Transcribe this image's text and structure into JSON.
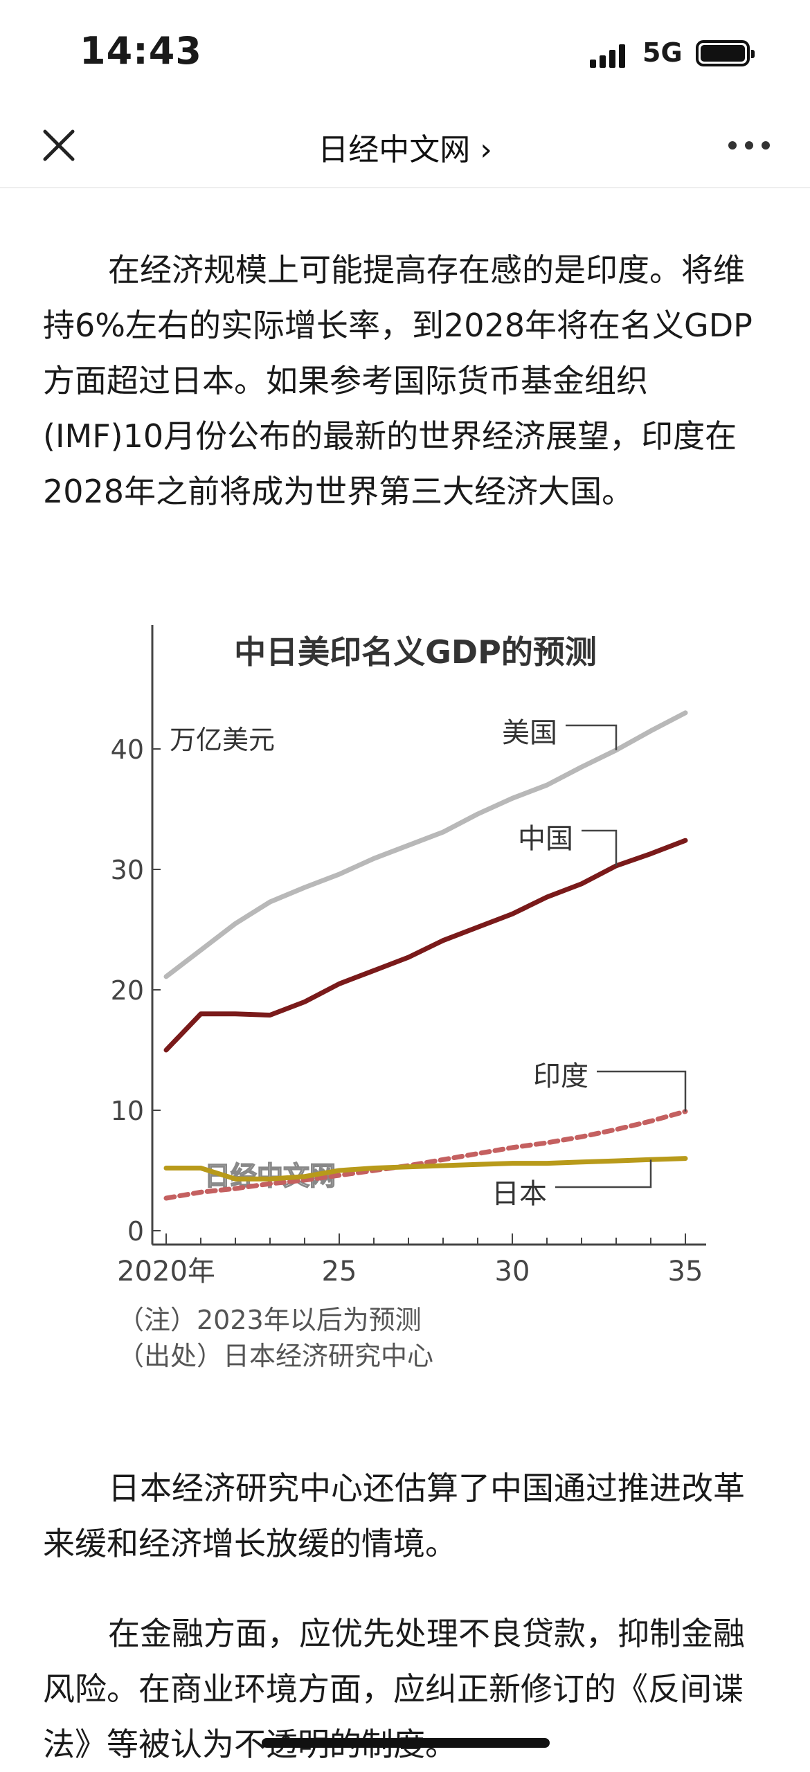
{
  "status_bar": {
    "time": "14:43",
    "network": "5G"
  },
  "nav": {
    "title": "日经中文网 ›",
    "close_icon": "close-icon",
    "more_icon": "more-icon"
  },
  "article": {
    "p1": "在经济规模上可能提高存在感的是印度。将维持6%左右的实际增长率，到2028年将在名义GDP方面超过日本。如果参考国际货币基金组织(IMF)10月份公布的最新的世界经济展望，印度在2028年之前将成为世界第三大经济大国。",
    "p2": "日本经济研究中心还估算了中国通过推进改革来缓和经济增长放缓的情境。",
    "p3": "在金融方面，应优先处理不良贷款，抑制金融风险。在商业环境方面，应纠正新修订的《反间谍法》等被认为不透明的制度。"
  },
  "chart_data": {
    "type": "line",
    "title": "中日美印名义GDP的预测",
    "ylabel": "万亿美元",
    "xlabel": "",
    "x": [
      2020,
      2021,
      2022,
      2023,
      2024,
      2025,
      2026,
      2027,
      2028,
      2029,
      2030,
      2031,
      2032,
      2033,
      2034,
      2035
    ],
    "xticks": [
      2020,
      2025,
      2030,
      2035
    ],
    "xtick_labels": [
      "2020年",
      "25",
      "30",
      "35"
    ],
    "yticks": [
      0,
      10,
      20,
      30,
      40
    ],
    "ylim": [
      0,
      45
    ],
    "forecast_from": 2023,
    "series": [
      {
        "name": "美国",
        "color": "#b8b8b8",
        "dashed": false,
        "values": [
          21.1,
          23.3,
          25.5,
          27.3,
          28.5,
          29.6,
          30.9,
          32.0,
          33.1,
          34.6,
          35.9,
          37.0,
          38.5,
          39.9,
          41.5,
          43.0
        ]
      },
      {
        "name": "中国",
        "color": "#7a1a1a",
        "dashed": false,
        "values": [
          15.0,
          18.0,
          18.0,
          17.9,
          19.0,
          20.5,
          21.6,
          22.7,
          24.1,
          25.2,
          26.3,
          27.7,
          28.8,
          30.3,
          31.3,
          32.4
        ]
      },
      {
        "name": "印度",
        "color": "#c46060",
        "dashed": true,
        "values": [
          2.7,
          3.2,
          3.5,
          3.9,
          4.2,
          4.6,
          5.0,
          5.4,
          5.9,
          6.4,
          6.9,
          7.3,
          7.8,
          8.4,
          9.1,
          9.9
        ]
      },
      {
        "name": "日本",
        "color": "#b89a1a",
        "dashed": false,
        "values": [
          5.2,
          5.2,
          4.3,
          4.3,
          4.5,
          5.0,
          5.2,
          5.3,
          5.4,
          5.5,
          5.6,
          5.6,
          5.7,
          5.8,
          5.9,
          6.0
        ]
      }
    ],
    "notes": [
      "（注）2023年以后为预测",
      "（出处）日本经济研究中心"
    ],
    "watermark": "日经中文网",
    "grid": false,
    "legend": "inline labels"
  }
}
